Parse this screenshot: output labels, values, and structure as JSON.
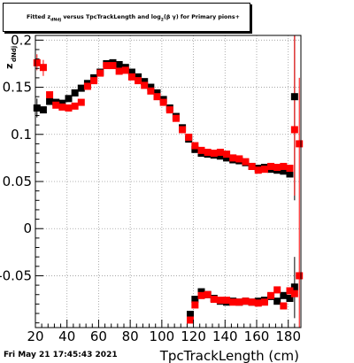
{
  "title": {
    "prefix": "Fitted z",
    "sub1": "dNdj",
    "mid": " versus TpcTrackLength and log",
    "sub2": "2",
    "suffix": "(β γ) for Primary pions+"
  },
  "footer": {
    "timestamp": "Fri May 21 17:45:43 2021"
  },
  "chart_data": {
    "type": "scatter",
    "title": "Fitted z_dNdj versus TpcTrackLength and log2(β γ) for Primary pions+",
    "xlabel": "TpcTrackLength (cm)",
    "ylabel": {
      "main": "z",
      "sub": "dNdj"
    },
    "xlim": [
      20,
      188
    ],
    "ylim": [
      -0.105,
      0.205
    ],
    "xticks": [
      20,
      40,
      60,
      80,
      100,
      120,
      140,
      160,
      180
    ],
    "xtick_labels": [
      "20",
      "40",
      "60",
      "80",
      "100",
      "120",
      "140",
      "160",
      "180"
    ],
    "yticks": [
      -0.05,
      0,
      0.05,
      0.1,
      0.15,
      0.2
    ],
    "ytick_labels": [
      "-0.05",
      "0",
      "0.05",
      "0.1",
      "0.15",
      "0.2"
    ],
    "grid": true,
    "series": [
      {
        "color": "#000000",
        "marker": "square",
        "points": [
          [
            21,
            0.128
          ],
          [
            25,
            0.126
          ],
          [
            29,
            0.135
          ],
          [
            33,
            0.134
          ],
          [
            37,
            0.133
          ],
          [
            41,
            0.138
          ],
          [
            45,
            0.144
          ],
          [
            49,
            0.149
          ],
          [
            53,
            0.154
          ],
          [
            57,
            0.16
          ],
          [
            61,
            0.166
          ],
          [
            65,
            0.175
          ],
          [
            69,
            0.176
          ],
          [
            73,
            0.174
          ],
          [
            77,
            0.171
          ],
          [
            81,
            0.166
          ],
          [
            85,
            0.161
          ],
          [
            89,
            0.156
          ],
          [
            93,
            0.15
          ],
          [
            97,
            0.144
          ],
          [
            101,
            0.137
          ],
          [
            105,
            0.128
          ],
          [
            109,
            0.119
          ],
          [
            113,
            0.107
          ],
          [
            117,
            0.095
          ],
          [
            121,
            0.084
          ],
          [
            125,
            0.08
          ],
          [
            129,
            0.079
          ],
          [
            133,
            0.078
          ],
          [
            137,
            0.077
          ],
          [
            141,
            0.075
          ],
          [
            145,
            0.073
          ],
          [
            149,
            0.072
          ],
          [
            153,
            0.07
          ],
          [
            157,
            0.066
          ],
          [
            161,
            0.064
          ],
          [
            165,
            0.065
          ],
          [
            169,
            0.063
          ],
          [
            173,
            0.062
          ],
          [
            177,
            0.061
          ],
          [
            181,
            0.058
          ],
          [
            184,
            0.14
          ],
          [
            118,
            -0.091
          ],
          [
            121,
            -0.075
          ],
          [
            125,
            -0.067
          ],
          [
            129,
            -0.07
          ],
          [
            133,
            -0.074
          ],
          [
            137,
            -0.077
          ],
          [
            141,
            -0.078
          ],
          [
            145,
            -0.077
          ],
          [
            149,
            -0.078
          ],
          [
            153,
            -0.077
          ],
          [
            157,
            -0.078
          ],
          [
            161,
            -0.077
          ],
          [
            165,
            -0.076
          ],
          [
            169,
            -0.072
          ],
          [
            173,
            -0.077
          ],
          [
            177,
            -0.071
          ],
          [
            181,
            -0.074
          ],
          [
            184,
            -0.062
          ]
        ],
        "errors": [
          {
            "x": 21,
            "lo": 0.118,
            "hi": 0.138
          },
          {
            "x": 184,
            "lo": 0.03,
            "hi": 0.205
          },
          {
            "x": 184,
            "lo": -0.095,
            "hi": -0.03
          }
        ]
      },
      {
        "color": "#ff0000",
        "marker": "square",
        "points": [
          [
            21,
            0.176
          ],
          [
            25,
            0.171
          ],
          [
            29,
            0.142
          ],
          [
            33,
            0.131
          ],
          [
            37,
            0.129
          ],
          [
            41,
            0.128
          ],
          [
            45,
            0.13
          ],
          [
            49,
            0.134
          ],
          [
            53,
            0.151
          ],
          [
            57,
            0.157
          ],
          [
            61,
            0.165
          ],
          [
            65,
            0.173
          ],
          [
            69,
            0.173
          ],
          [
            73,
            0.167
          ],
          [
            77,
            0.168
          ],
          [
            81,
            0.161
          ],
          [
            85,
            0.157
          ],
          [
            89,
            0.152
          ],
          [
            93,
            0.146
          ],
          [
            97,
            0.14
          ],
          [
            101,
            0.134
          ],
          [
            105,
            0.126
          ],
          [
            109,
            0.117
          ],
          [
            113,
            0.105
          ],
          [
            117,
            0.097
          ],
          [
            121,
            0.088
          ],
          [
            125,
            0.083
          ],
          [
            129,
            0.081
          ],
          [
            133,
            0.08
          ],
          [
            137,
            0.081
          ],
          [
            141,
            0.079
          ],
          [
            145,
            0.075
          ],
          [
            149,
            0.074
          ],
          [
            153,
            0.071
          ],
          [
            157,
            0.066
          ],
          [
            161,
            0.062
          ],
          [
            165,
            0.063
          ],
          [
            169,
            0.066
          ],
          [
            173,
            0.065
          ],
          [
            177,
            0.066
          ],
          [
            181,
            0.064
          ],
          [
            184,
            0.105
          ],
          [
            187,
            0.09
          ],
          [
            118,
            -0.097
          ],
          [
            121,
            -0.081
          ],
          [
            125,
            -0.071
          ],
          [
            129,
            -0.07
          ],
          [
            133,
            -0.075
          ],
          [
            137,
            -0.076
          ],
          [
            141,
            -0.076
          ],
          [
            145,
            -0.078
          ],
          [
            149,
            -0.078
          ],
          [
            153,
            -0.077
          ],
          [
            157,
            -0.078
          ],
          [
            161,
            -0.079
          ],
          [
            165,
            -0.078
          ],
          [
            169,
            -0.071
          ],
          [
            173,
            -0.065
          ],
          [
            177,
            -0.082
          ],
          [
            181,
            -0.066
          ],
          [
            184,
            -0.069
          ],
          [
            187,
            -0.05
          ]
        ],
        "errors": [
          {
            "x": 21,
            "lo": 0.168,
            "hi": 0.185
          },
          {
            "x": 25,
            "lo": 0.162,
            "hi": 0.179
          },
          {
            "x": 184,
            "lo": 0.035,
            "hi": 0.205
          },
          {
            "x": 187,
            "lo": -0.105,
            "hi": 0.16
          }
        ]
      }
    ]
  }
}
